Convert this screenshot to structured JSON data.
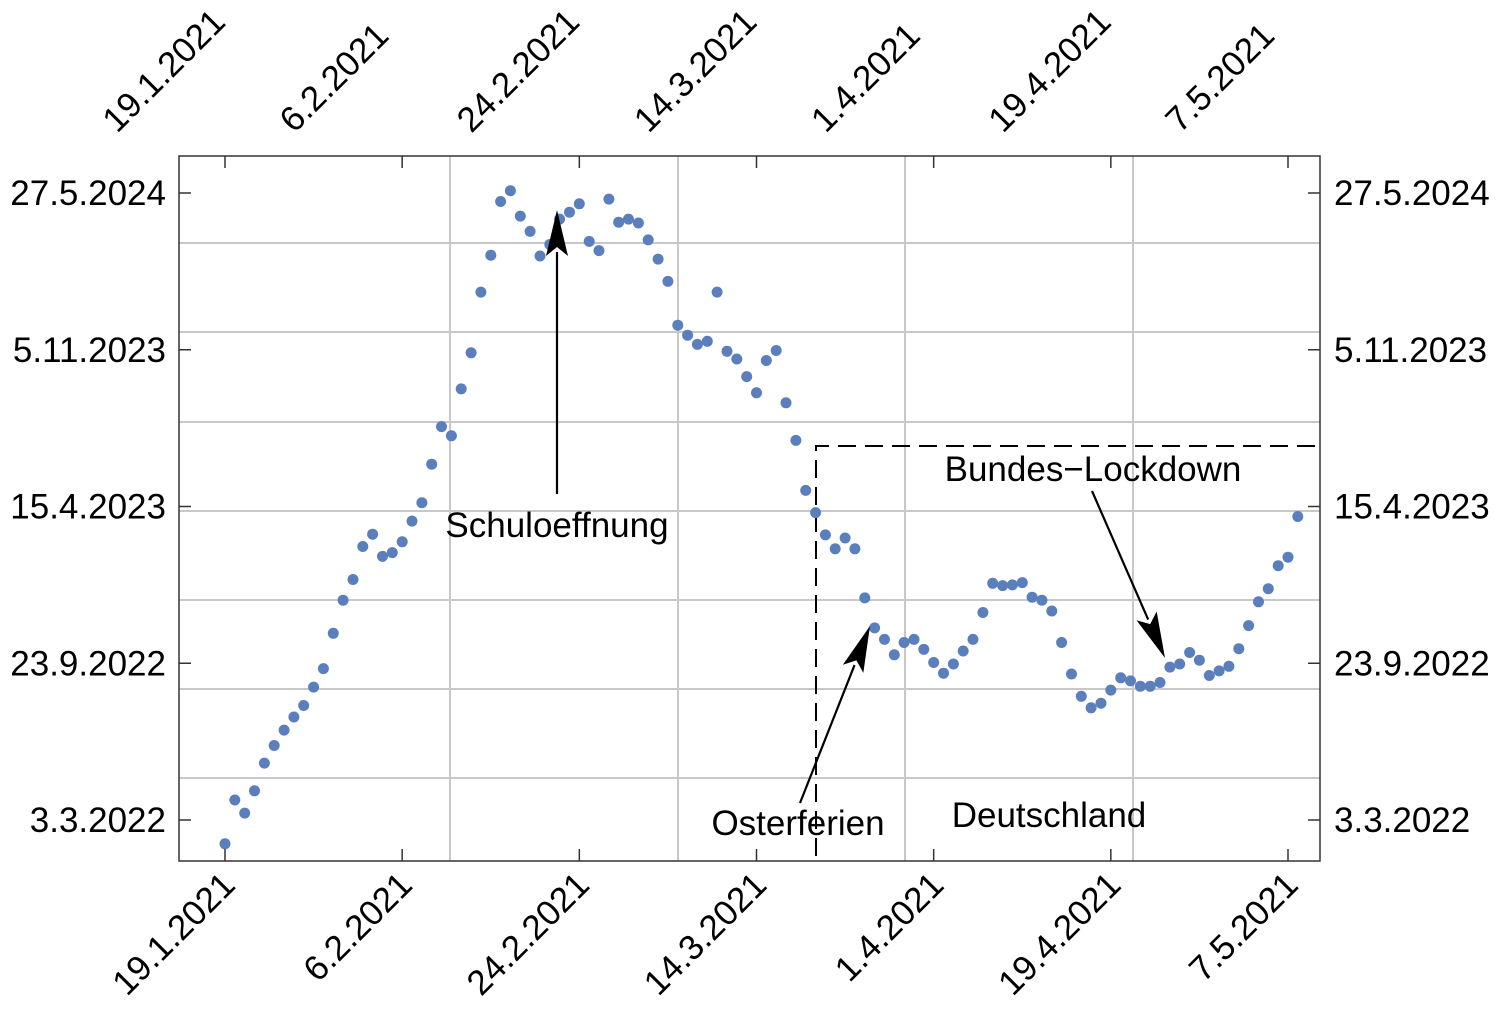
{
  "chart_data": {
    "type": "scatter",
    "title": "",
    "xlabel": "",
    "ylabel": "",
    "x_tick_labels": [
      "19.1.2021",
      "6.2.2021",
      "24.2.2021",
      "14.3.2021",
      "1.4.2021",
      "19.4.2021",
      "7.5.2021"
    ],
    "y_tick_labels": [
      "3.3.2022",
      "23.9.2022",
      "15.4.2023",
      "5.11.2023",
      "27.5.2024"
    ],
    "grid": true,
    "series": [
      {
        "color": "#5b7fbd",
        "points": [
          [
            "2021-01-19",
            "2022-01-31"
          ],
          [
            "2021-01-20",
            "2022-03-29"
          ],
          [
            "2021-01-21",
            "2022-03-12"
          ],
          [
            "2021-01-22",
            "2022-04-10"
          ],
          [
            "2021-01-23",
            "2022-05-16"
          ],
          [
            "2021-01-24",
            "2022-06-08"
          ],
          [
            "2021-01-25",
            "2022-06-28"
          ],
          [
            "2021-01-26",
            "2022-07-15"
          ],
          [
            "2021-01-27",
            "2022-07-30"
          ],
          [
            "2021-01-28",
            "2022-08-23"
          ],
          [
            "2021-01-29",
            "2022-09-16"
          ],
          [
            "2021-01-30",
            "2022-11-01"
          ],
          [
            "2021-01-31",
            "2022-12-14"
          ],
          [
            "2021-02-01",
            "2023-01-10"
          ],
          [
            "2021-02-02",
            "2023-02-22"
          ],
          [
            "2021-02-03",
            "2023-03-10"
          ],
          [
            "2021-02-04",
            "2023-02-09"
          ],
          [
            "2021-02-05",
            "2023-02-14"
          ],
          [
            "2021-02-06",
            "2023-02-28"
          ],
          [
            "2021-02-07",
            "2023-03-27"
          ],
          [
            "2021-02-08",
            "2023-04-20"
          ],
          [
            "2021-02-09",
            "2023-06-09"
          ],
          [
            "2021-02-10",
            "2023-07-28"
          ],
          [
            "2021-02-11",
            "2023-07-16"
          ],
          [
            "2021-02-12",
            "2023-09-15"
          ],
          [
            "2021-02-13",
            "2023-11-01"
          ],
          [
            "2021-02-14",
            "2024-01-19"
          ],
          [
            "2021-02-15",
            "2024-03-07"
          ],
          [
            "2021-02-16",
            "2024-05-16"
          ],
          [
            "2021-02-17",
            "2024-05-30"
          ],
          [
            "2021-02-18",
            "2024-04-27"
          ],
          [
            "2021-02-19",
            "2024-04-07"
          ],
          [
            "2021-02-20",
            "2024-03-06"
          ],
          [
            "2021-02-21",
            "2024-03-21"
          ],
          [
            "2021-02-22",
            "2024-04-23"
          ],
          [
            "2021-02-23",
            "2024-05-02"
          ],
          [
            "2021-02-24",
            "2024-05-13"
          ],
          [
            "2021-02-25",
            "2024-03-25"
          ],
          [
            "2021-02-26",
            "2024-03-13"
          ],
          [
            "2021-02-27",
            "2024-05-19"
          ],
          [
            "2021-02-28",
            "2024-04-19"
          ],
          [
            "2021-03-01",
            "2024-04-23"
          ],
          [
            "2021-03-02",
            "2024-04-18"
          ],
          [
            "2021-03-03",
            "2024-03-27"
          ],
          [
            "2021-03-04",
            "2024-03-02"
          ],
          [
            "2021-03-05",
            "2024-02-02"
          ],
          [
            "2021-03-06",
            "2023-12-07"
          ],
          [
            "2021-03-07",
            "2023-11-24"
          ],
          [
            "2021-03-08",
            "2023-11-12"
          ],
          [
            "2021-03-09",
            "2023-11-16"
          ],
          [
            "2021-03-10",
            "2024-01-19"
          ],
          [
            "2021-03-11",
            "2023-11-03"
          ],
          [
            "2021-03-12",
            "2023-10-24"
          ],
          [
            "2021-03-13",
            "2023-10-01"
          ],
          [
            "2021-03-14",
            "2023-09-10"
          ],
          [
            "2021-03-15",
            "2023-10-22"
          ],
          [
            "2021-03-16",
            "2023-11-04"
          ],
          [
            "2021-03-17",
            "2023-08-28"
          ],
          [
            "2021-03-18",
            "2023-07-10"
          ],
          [
            "2021-03-19",
            "2023-05-06"
          ],
          [
            "2021-03-20",
            "2023-04-07"
          ],
          [
            "2021-03-21",
            "2023-03-09"
          ],
          [
            "2021-03-22",
            "2023-02-19"
          ],
          [
            "2021-03-23",
            "2023-03-05"
          ],
          [
            "2021-03-24",
            "2023-02-19"
          ],
          [
            "2021-03-25",
            "2022-12-17"
          ],
          [
            "2021-03-26",
            "2022-11-08"
          ],
          [
            "2021-03-27",
            "2022-10-24"
          ],
          [
            "2021-03-28",
            "2022-10-04"
          ],
          [
            "2021-03-29",
            "2022-10-20"
          ],
          [
            "2021-03-30",
            "2022-10-24"
          ],
          [
            "2021-03-31",
            "2022-10-11"
          ],
          [
            "2021-04-01",
            "2022-09-24"
          ],
          [
            "2021-04-02",
            "2022-09-10"
          ],
          [
            "2021-04-03",
            "2022-09-22"
          ],
          [
            "2021-04-04",
            "2022-10-09"
          ],
          [
            "2021-04-05",
            "2022-10-24"
          ],
          [
            "2021-04-06",
            "2022-11-28"
          ],
          [
            "2021-04-07",
            "2023-01-05"
          ],
          [
            "2021-04-08",
            "2023-01-02"
          ],
          [
            "2021-04-09",
            "2023-01-03"
          ],
          [
            "2021-04-10",
            "2023-01-06"
          ],
          [
            "2021-04-11",
            "2022-12-18"
          ],
          [
            "2021-04-12",
            "2022-12-14"
          ],
          [
            "2021-04-13",
            "2022-11-30"
          ],
          [
            "2021-04-14",
            "2022-10-20"
          ],
          [
            "2021-04-15",
            "2022-09-09"
          ],
          [
            "2021-04-16",
            "2022-08-11"
          ],
          [
            "2021-04-17",
            "2022-07-27"
          ],
          [
            "2021-04-18",
            "2022-08-02"
          ],
          [
            "2021-04-19",
            "2022-08-19"
          ],
          [
            "2021-04-20",
            "2022-09-04"
          ],
          [
            "2021-04-21",
            "2022-08-31"
          ],
          [
            "2021-04-22",
            "2022-08-24"
          ],
          [
            "2021-04-23",
            "2022-08-24"
          ],
          [
            "2021-04-24",
            "2022-08-29"
          ],
          [
            "2021-04-25",
            "2022-09-18"
          ],
          [
            "2021-04-26",
            "2022-09-22"
          ],
          [
            "2021-04-27",
            "2022-10-07"
          ],
          [
            "2021-04-28",
            "2022-09-27"
          ],
          [
            "2021-04-29",
            "2022-09-07"
          ],
          [
            "2021-04-30",
            "2022-09-13"
          ],
          [
            "2021-05-01",
            "2022-09-19"
          ],
          [
            "2021-05-02",
            "2022-10-12"
          ],
          [
            "2021-05-03",
            "2022-11-11"
          ],
          [
            "2021-05-04",
            "2022-12-12"
          ],
          [
            "2021-05-05",
            "2022-12-29"
          ],
          [
            "2021-05-06",
            "2023-01-28"
          ],
          [
            "2021-05-07",
            "2023-02-08"
          ],
          [
            "2021-05-08",
            "2023-04-02"
          ]
        ]
      }
    ],
    "annotations": [
      {
        "text": "Schuloeffnung"
      },
      {
        "text": "Osterferien"
      },
      {
        "text": "Bundes−Lockdown"
      },
      {
        "text": "Deutschland"
      }
    ]
  }
}
